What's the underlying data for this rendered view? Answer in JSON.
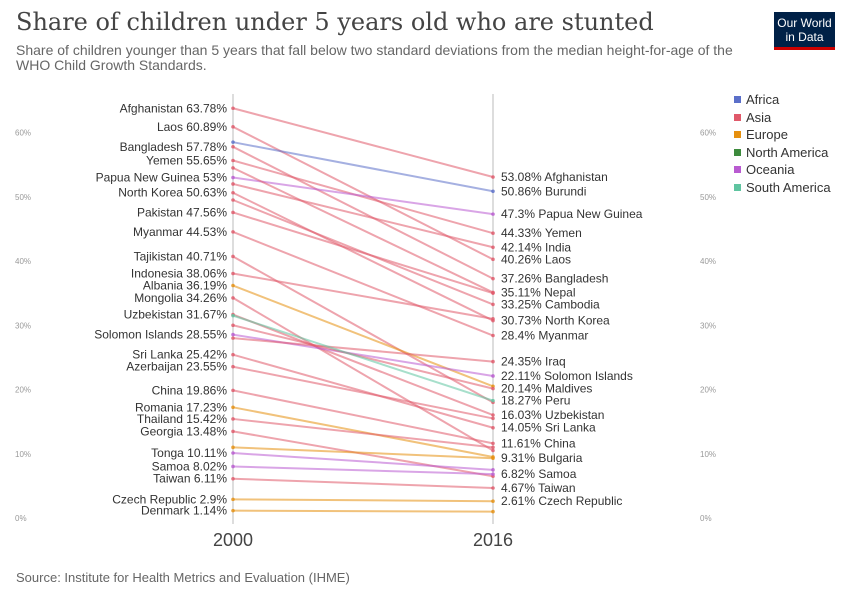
{
  "header": {
    "title": "Share of children under 5 years old who are stunted",
    "subtitle": "Share of children younger than 5 years that fall below two standard deviations from the median height-for-age of the WHO Child Growth Standards.",
    "logo_line1": "Our World",
    "logo_line2": "in Data"
  },
  "footer": {
    "source": "Source: Institute for Health Metrics and Evaluation (IHME)"
  },
  "legend": [
    {
      "name": "Africa",
      "color": "#5b6fc9"
    },
    {
      "name": "Asia",
      "color": "#e0596a"
    },
    {
      "name": "Europe",
      "color": "#e6900f"
    },
    {
      "name": "North America",
      "color": "#3d8b3d"
    },
    {
      "name": "Oceania",
      "color": "#b95bd1"
    },
    {
      "name": "South America",
      "color": "#5fc4a0"
    }
  ],
  "chart_data": {
    "type": "slope",
    "x": [
      "2000",
      "2016"
    ],
    "ylim": [
      0,
      66
    ],
    "y_ticks": [
      "0%",
      "10%",
      "20%",
      "30%",
      "40%",
      "50%",
      "60%"
    ],
    "y_tick_values": [
      0,
      10,
      20,
      30,
      40,
      50,
      60
    ],
    "left_labels": [
      {
        "text": "Afghanistan 63.78%",
        "value": 63.78
      },
      {
        "text": "Laos 60.89%",
        "value": 60.89
      },
      {
        "text": "Bangladesh 57.78%",
        "value": 57.78
      },
      {
        "text": "Yemen 55.65%",
        "value": 55.65
      },
      {
        "text": "Papua New Guinea 53%",
        "value": 53
      },
      {
        "text": "North Korea 50.63%",
        "value": 50.63
      },
      {
        "text": "Pakistan 47.56%",
        "value": 47.56
      },
      {
        "text": "Myanmar 44.53%",
        "value": 44.53
      },
      {
        "text": "Tajikistan 40.71%",
        "value": 40.71
      },
      {
        "text": "Indonesia 38.06%",
        "value": 38.06
      },
      {
        "text": "Albania 36.19%",
        "value": 36.19
      },
      {
        "text": "Mongolia 34.26%",
        "value": 34.26
      },
      {
        "text": "Uzbekistan 31.67%",
        "value": 31.67
      },
      {
        "text": "Solomon Islands 28.55%",
        "value": 28.55
      },
      {
        "text": "Sri Lanka 25.42%",
        "value": 25.42
      },
      {
        "text": "Azerbaijan 23.55%",
        "value": 23.55
      },
      {
        "text": "China 19.86%",
        "value": 19.86
      },
      {
        "text": "Romania 17.23%",
        "value": 17.23
      },
      {
        "text": "Thailand 15.42%",
        "value": 15.42
      },
      {
        "text": "Georgia 13.48%",
        "value": 13.48
      },
      {
        "text": "Tonga 10.11%",
        "value": 10.11
      },
      {
        "text": "Samoa 8.02%",
        "value": 8.02
      },
      {
        "text": "Taiwan 6.11%",
        "value": 6.11
      },
      {
        "text": "Czech Republic 2.9%",
        "value": 2.9
      },
      {
        "text": "Denmark 1.14%",
        "value": 1.14
      }
    ],
    "right_labels": [
      {
        "text": "53.08% Afghanistan",
        "value": 53.08
      },
      {
        "text": "50.86% Burundi",
        "value": 50.86
      },
      {
        "text": "47.3% Papua New Guinea",
        "value": 47.3
      },
      {
        "text": "44.33% Yemen",
        "value": 44.33
      },
      {
        "text": "42.14% India",
        "value": 42.14
      },
      {
        "text": "40.26% Laos",
        "value": 40.26
      },
      {
        "text": "37.26% Bangladesh",
        "value": 37.26
      },
      {
        "text": "35.11% Nepal",
        "value": 35.11
      },
      {
        "text": "33.25% Cambodia",
        "value": 33.25
      },
      {
        "text": "30.73% North Korea",
        "value": 30.73
      },
      {
        "text": "28.4% Myanmar",
        "value": 28.4
      },
      {
        "text": "24.35% Iraq",
        "value": 24.35
      },
      {
        "text": "22.11% Solomon Islands",
        "value": 22.11
      },
      {
        "text": "20.14% Maldives",
        "value": 20.14
      },
      {
        "text": "18.27% Peru",
        "value": 18.27
      },
      {
        "text": "16.03% Uzbekistan",
        "value": 16.03
      },
      {
        "text": "14.05% Sri Lanka",
        "value": 14.05
      },
      {
        "text": "11.61% China",
        "value": 11.61
      },
      {
        "text": "9.31% Bulgaria",
        "value": 9.31
      },
      {
        "text": "6.82% Samoa",
        "value": 6.82
      },
      {
        "text": "4.67% Taiwan",
        "value": 4.67
      },
      {
        "text": "2.61% Czech Republic",
        "value": 2.61
      }
    ],
    "series": [
      {
        "name": "Afghanistan",
        "region": "Asia",
        "values": [
          63.78,
          53.08
        ]
      },
      {
        "name": "Laos",
        "region": "Asia",
        "values": [
          60.89,
          40.26
        ]
      },
      {
        "name": "Bangladesh",
        "region": "Asia",
        "values": [
          57.78,
          37.26
        ]
      },
      {
        "name": "Yemen",
        "region": "Asia",
        "values": [
          55.65,
          44.33
        ]
      },
      {
        "name": "Papua New Guinea",
        "region": "Oceania",
        "values": [
          53.0,
          47.3
        ]
      },
      {
        "name": "North Korea",
        "region": "Asia",
        "values": [
          50.63,
          30.73
        ]
      },
      {
        "name": "Pakistan",
        "region": "Asia",
        "values": [
          47.56,
          35.0
        ]
      },
      {
        "name": "Myanmar",
        "region": "Asia",
        "values": [
          44.53,
          28.4
        ]
      },
      {
        "name": "Tajikistan",
        "region": "Asia",
        "values": [
          40.71,
          18.0
        ]
      },
      {
        "name": "Indonesia",
        "region": "Asia",
        "values": [
          38.06,
          31.0
        ]
      },
      {
        "name": "Albania",
        "region": "Europe",
        "values": [
          36.19,
          20.5
        ]
      },
      {
        "name": "Mongolia",
        "region": "Asia",
        "values": [
          34.26,
          10.5
        ]
      },
      {
        "name": "Uzbekistan",
        "region": "Asia",
        "values": [
          31.67,
          16.03
        ]
      },
      {
        "name": "Solomon Islands",
        "region": "Oceania",
        "values": [
          28.55,
          22.11
        ]
      },
      {
        "name": "Sri Lanka",
        "region": "Asia",
        "values": [
          25.42,
          14.05
        ]
      },
      {
        "name": "Azerbaijan",
        "region": "Asia",
        "values": [
          23.55,
          15.5
        ]
      },
      {
        "name": "China",
        "region": "Asia",
        "values": [
          19.86,
          11.61
        ]
      },
      {
        "name": "Romania",
        "region": "Europe",
        "values": [
          17.23,
          9.5
        ]
      },
      {
        "name": "Thailand",
        "region": "Asia",
        "values": [
          15.42,
          11.0
        ]
      },
      {
        "name": "Georgia",
        "region": "Asia",
        "values": [
          13.48,
          6.5
        ]
      },
      {
        "name": "Tonga",
        "region": "Oceania",
        "values": [
          10.11,
          7.5
        ]
      },
      {
        "name": "Samoa",
        "region": "Oceania",
        "values": [
          8.02,
          6.82
        ]
      },
      {
        "name": "Taiwan",
        "region": "Asia",
        "values": [
          6.11,
          4.67
        ]
      },
      {
        "name": "Czech Republic",
        "region": "Europe",
        "values": [
          2.9,
          2.61
        ]
      },
      {
        "name": "Denmark",
        "region": "Europe",
        "values": [
          1.14,
          1.0
        ]
      },
      {
        "name": "Burundi",
        "region": "Africa",
        "values": [
          58.5,
          50.86
        ]
      },
      {
        "name": "India",
        "region": "Asia",
        "values": [
          52.0,
          42.14
        ]
      },
      {
        "name": "Nepal",
        "region": "Asia",
        "values": [
          54.5,
          35.11
        ]
      },
      {
        "name": "Cambodia",
        "region": "Asia",
        "values": [
          49.5,
          33.25
        ]
      },
      {
        "name": "Iraq",
        "region": "Asia",
        "values": [
          28.0,
          24.35
        ]
      },
      {
        "name": "Maldives",
        "region": "Asia",
        "values": [
          30.0,
          20.14
        ]
      },
      {
        "name": "Peru",
        "region": "South America",
        "values": [
          31.5,
          18.27
        ]
      },
      {
        "name": "Bulgaria",
        "region": "Europe",
        "values": [
          11.0,
          9.31
        ]
      }
    ]
  }
}
